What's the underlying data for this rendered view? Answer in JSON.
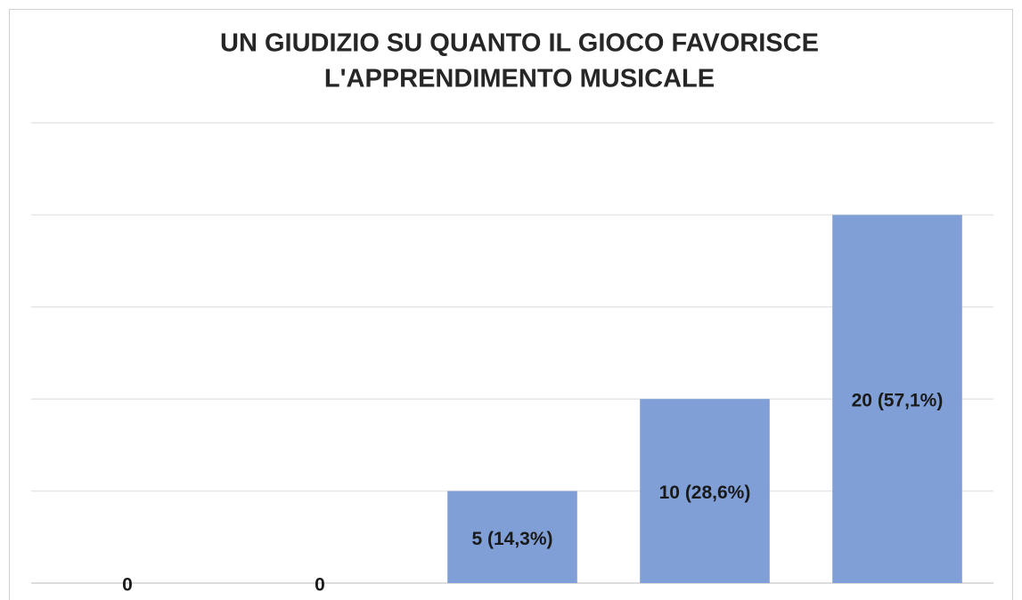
{
  "chart_data": {
    "type": "bar",
    "title": [
      "UN GIUDIZIO SU QUANTO IL GIOCO FAVORISCE",
      "L'APPRENDIMENTO MUSICALE"
    ],
    "categories": [
      null,
      null,
      null,
      null,
      null
    ],
    "values": [
      0,
      0,
      5,
      10,
      20
    ],
    "value_labels": [
      "0",
      "0",
      "5 (14,3%)",
      "10 (28,6%)",
      "20 (57,1%)"
    ],
    "color": "#7f9fd6",
    "ylim": [
      0,
      25
    ],
    "yticks": [
      0,
      5,
      10,
      15,
      20,
      25
    ],
    "grid": true
  }
}
